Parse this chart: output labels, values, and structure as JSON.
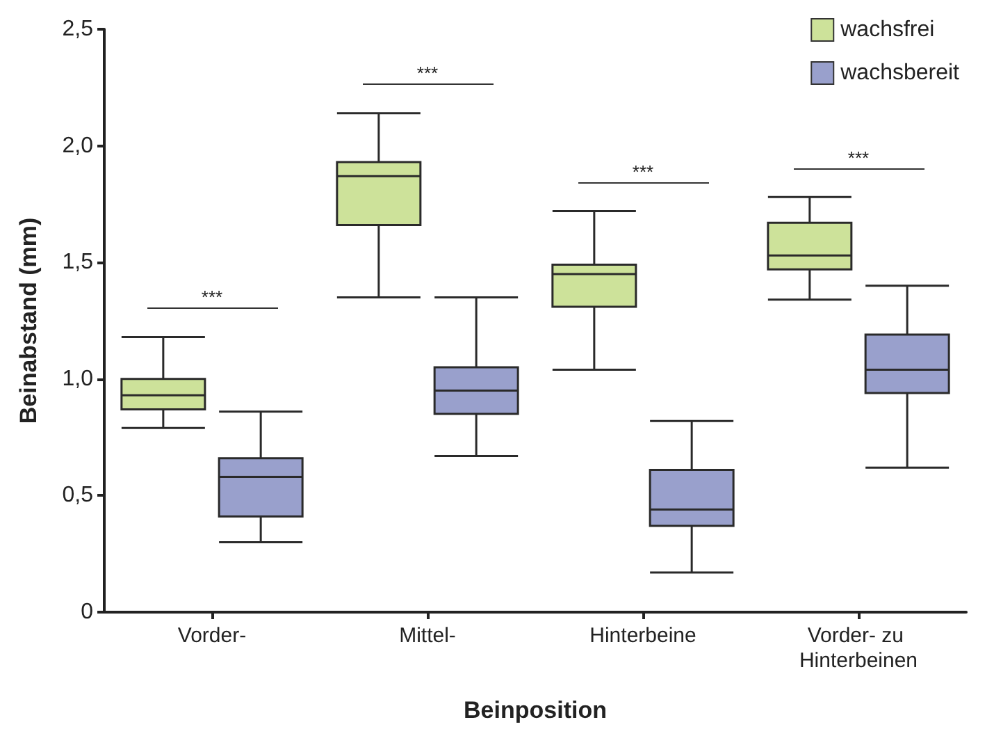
{
  "chart_data": {
    "type": "box",
    "xlabel": "Beinposition",
    "ylabel": "Beinabstand (mm)",
    "categories": [
      "Vorder-",
      "Mittel-",
      "Hinterbeine",
      "Vorder- zu Hinterbeinen"
    ],
    "series": [
      {
        "name": "wachsfrei",
        "color": "#cde29a",
        "boxes": [
          {
            "low": 0.79,
            "q1": 0.87,
            "median": 0.93,
            "q3": 1.0,
            "high": 1.18
          },
          {
            "low": 1.35,
            "q1": 1.66,
            "median": 1.87,
            "q3": 1.93,
            "high": 2.14
          },
          {
            "low": 1.04,
            "q1": 1.31,
            "median": 1.45,
            "q3": 1.49,
            "high": 1.72
          },
          {
            "low": 1.34,
            "q1": 1.47,
            "median": 1.53,
            "q3": 1.67,
            "high": 1.78
          }
        ]
      },
      {
        "name": "wachsbereit",
        "color": "#99a0cc",
        "boxes": [
          {
            "low": 0.3,
            "q1": 0.41,
            "median": 0.58,
            "q3": 0.66,
            "high": 0.86
          },
          {
            "low": 0.67,
            "q1": 0.85,
            "median": 0.95,
            "q3": 1.05,
            "high": 1.35
          },
          {
            "low": 0.17,
            "q1": 0.37,
            "median": 0.44,
            "q3": 0.61,
            "high": 0.82
          },
          {
            "low": 0.62,
            "q1": 0.94,
            "median": 1.04,
            "q3": 1.19,
            "high": 1.4
          }
        ]
      }
    ],
    "ylim": [
      0,
      2.5
    ],
    "yticks": [
      0,
      {
        "value": 0.5,
        "label": "0,5"
      },
      {
        "value": 1,
        "label": "1,0"
      },
      {
        "value": 1.5,
        "label": "1,5"
      },
      {
        "value": 2,
        "label": "2,0"
      },
      {
        "value": 2.5,
        "label": "2,5"
      }
    ],
    "grid": false,
    "legend": "top right",
    "annotations": [
      "***",
      "***",
      "***",
      "***"
    ]
  }
}
